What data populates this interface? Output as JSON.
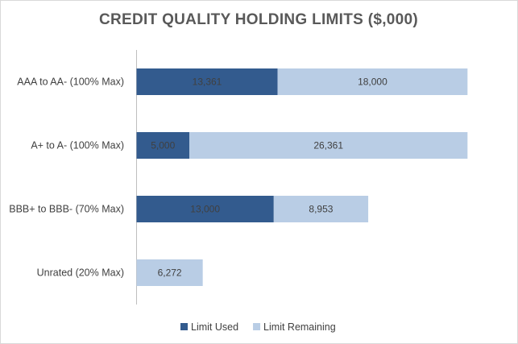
{
  "chart_data": {
    "type": "bar",
    "orientation": "horizontal",
    "stacked": true,
    "title": "CREDIT QUALITY HOLDING LIMITS ($,000)",
    "categories": [
      "AAA to AA-  (100% Max)",
      "A+ to A-  (100% Max)",
      "BBB+ to BBB- (70% Max)",
      "Unrated (20% Max)"
    ],
    "series": [
      {
        "name": "Limit Used",
        "color": "#335b8e",
        "values": [
          13361,
          5000,
          13000,
          0
        ],
        "labels": [
          "13,361",
          "5,000",
          "13,000",
          "0"
        ]
      },
      {
        "name": "Limit Remaining",
        "color": "#b9cde5",
        "values": [
          18000,
          26361,
          8953,
          6272
        ],
        "labels": [
          "18,000",
          "26,361",
          "8,953",
          "6,272"
        ]
      }
    ],
    "xlim": [
      0,
      35000
    ],
    "grid": false,
    "legend_position": "bottom"
  }
}
